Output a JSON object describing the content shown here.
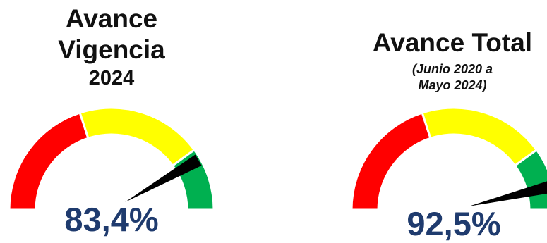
{
  "chart_data": [
    {
      "type": "gauge",
      "title_lines": [
        "Avance",
        "Vigencia",
        "2024"
      ],
      "value": 83.4,
      "value_label": "83,4%",
      "range": [
        0,
        100
      ],
      "bands": [
        {
          "from": 0,
          "to": 40,
          "color": "#ff0000"
        },
        {
          "from": 40,
          "to": 80,
          "color": "#ffff00"
        },
        {
          "from": 80,
          "to": 100,
          "color": "#00b050"
        }
      ]
    },
    {
      "type": "gauge",
      "title_lines": [
        "Avance Total",
        "(Junio 2020 a",
        "Mayo 2024)"
      ],
      "value": 92.5,
      "value_label": "92,5%",
      "range": [
        0,
        100
      ],
      "bands": [
        {
          "from": 0,
          "to": 40,
          "color": "#ff0000"
        },
        {
          "from": 40,
          "to": 80,
          "color": "#ffff00"
        },
        {
          "from": 80,
          "to": 100,
          "color": "#00b050"
        }
      ]
    }
  ],
  "colors": {
    "needle": "#000000",
    "value_text": "#1f3b6e"
  }
}
